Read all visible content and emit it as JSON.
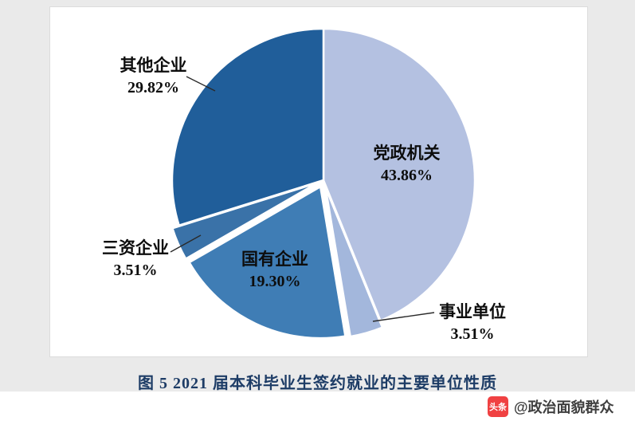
{
  "chart_data": {
    "type": "pie",
    "title": "图 5  2021 届本科毕业生签约就业的主要单位性质",
    "direction": "clockwise",
    "start_angle_deg": 0,
    "legend": "none",
    "label_style": "callout",
    "slices": [
      {
        "label": "党政机关",
        "value": 43.86,
        "pct_label": "43.86%",
        "color": "#b4c1e1",
        "exploded": false
      },
      {
        "label": "事业单位",
        "value": 3.51,
        "pct_label": "3.51%",
        "color": "#a3b7dc",
        "exploded": true
      },
      {
        "label": "国有企业",
        "value": 19.3,
        "pct_label": "19.30%",
        "color": "#3f7db5",
        "exploded": true
      },
      {
        "label": "三资企业",
        "value": 3.51,
        "pct_label": "3.51%",
        "color": "#3a72a8",
        "exploded": true
      },
      {
        "label": "其他企业",
        "value": 29.82,
        "pct_label": "29.82%",
        "color": "#205e9a",
        "exploded": false
      }
    ]
  },
  "watermark": {
    "logo": "头条",
    "handle": "@政治面貌群众",
    "logo_color": "#f04142"
  }
}
